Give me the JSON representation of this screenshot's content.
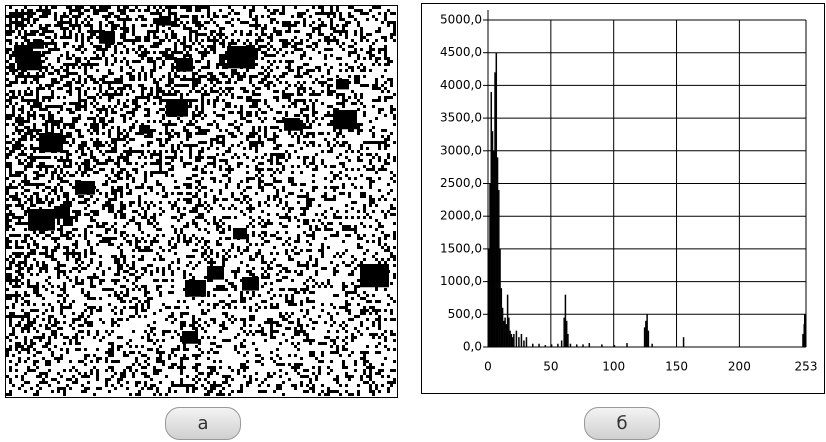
{
  "panel_labels": [
    "а",
    "б"
  ],
  "chart_data": {
    "type": "bar",
    "x": [
      0,
      1,
      2,
      3,
      4,
      5,
      6,
      7,
      8,
      9,
      10,
      11,
      12,
      13,
      14,
      15,
      16,
      17,
      18,
      19,
      20,
      22,
      24,
      26,
      28,
      30,
      35,
      40,
      45,
      50,
      55,
      58,
      60,
      61,
      62,
      63,
      65,
      70,
      75,
      80,
      90,
      100,
      110,
      124,
      125,
      126,
      127,
      130,
      155,
      250,
      251,
      252,
      253
    ],
    "values": [
      1500,
      2500,
      3900,
      3300,
      3000,
      4200,
      4500,
      2900,
      2400,
      1500,
      900,
      600,
      400,
      450,
      350,
      800,
      450,
      250,
      200,
      150,
      200,
      250,
      150,
      200,
      100,
      150,
      50,
      50,
      30,
      40,
      50,
      100,
      450,
      800,
      400,
      200,
      50,
      40,
      40,
      60,
      40,
      30,
      60,
      300,
      400,
      500,
      250,
      50,
      150,
      200,
      350,
      500,
      300
    ],
    "color": "#000000",
    "xlim": [
      0,
      253
    ],
    "xticks": [
      0,
      50,
      100,
      150,
      200,
      253
    ],
    "ylim": [
      0,
      5000
    ],
    "yticks": [
      {
        "value": 0,
        "label": "0,0"
      },
      {
        "value": 500,
        "label": "500,0"
      },
      {
        "value": 1000,
        "label": "1000,0"
      },
      {
        "value": 1500,
        "label": "1500,0"
      },
      {
        "value": 2000,
        "label": "2000,0"
      },
      {
        "value": 2500,
        "label": "2500,0"
      },
      {
        "value": 3000,
        "label": "3000,0"
      },
      {
        "value": 3500,
        "label": "3500,0"
      },
      {
        "value": 4000,
        "label": "4000,0"
      },
      {
        "value": 4500,
        "label": "4500,0"
      },
      {
        "value": 5000,
        "label": "5000,0"
      }
    ],
    "grid": true
  }
}
